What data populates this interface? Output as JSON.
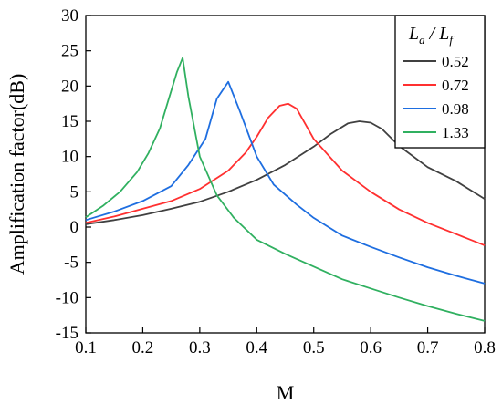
{
  "chart_data": {
    "type": "line",
    "xlabel": "M",
    "ylabel": "Amplification factor(dB)",
    "xlim": [
      0.1,
      0.8
    ],
    "ylim": [
      -15,
      30
    ],
    "xticks": [
      "0.1",
      "0.2",
      "0.3",
      "0.4",
      "0.5",
      "0.6",
      "0.7",
      "0.8"
    ],
    "yticks": [
      "-15",
      "-10",
      "-5",
      "0",
      "5",
      "10",
      "15",
      "20",
      "25",
      "30"
    ],
    "grid": false,
    "legend": {
      "placement": "top-right",
      "title_main_1": "L",
      "title_sub_1": "a",
      "title_sep": " / ",
      "title_main_2": "L",
      "title_sub_2": "f"
    },
    "series": [
      {
        "name": "0.52",
        "color": "#404040",
        "x": [
          0.1,
          0.15,
          0.2,
          0.25,
          0.3,
          0.35,
          0.4,
          0.45,
          0.5,
          0.53,
          0.56,
          0.58,
          0.6,
          0.62,
          0.65,
          0.7,
          0.75,
          0.8
        ],
        "y": [
          0.4,
          1.0,
          1.7,
          2.6,
          3.6,
          5.0,
          6.7,
          8.8,
          11.4,
          13.2,
          14.7,
          15.0,
          14.8,
          13.9,
          11.5,
          8.5,
          6.5,
          4.0
        ]
      },
      {
        "name": "0.72",
        "color": "#ff3030",
        "x": [
          0.1,
          0.15,
          0.2,
          0.25,
          0.3,
          0.35,
          0.38,
          0.4,
          0.42,
          0.44,
          0.455,
          0.47,
          0.5,
          0.55,
          0.6,
          0.65,
          0.7,
          0.75,
          0.8
        ],
        "y": [
          0.6,
          1.5,
          2.6,
          3.7,
          5.4,
          8.0,
          10.5,
          12.8,
          15.5,
          17.2,
          17.5,
          16.8,
          12.5,
          8.0,
          5.0,
          2.5,
          0.6,
          -1.0,
          -2.6
        ]
      },
      {
        "name": "0.98",
        "color": "#1e6ee0",
        "x": [
          0.1,
          0.15,
          0.2,
          0.25,
          0.28,
          0.31,
          0.33,
          0.35,
          0.37,
          0.4,
          0.43,
          0.47,
          0.5,
          0.55,
          0.6,
          0.65,
          0.7,
          0.75,
          0.8
        ],
        "y": [
          1.0,
          2.2,
          3.7,
          5.8,
          8.8,
          12.5,
          18.2,
          20.6,
          16.5,
          10.0,
          6.0,
          3.2,
          1.3,
          -1.2,
          -2.8,
          -4.3,
          -5.7,
          -6.9,
          -8.0
        ]
      },
      {
        "name": "1.33",
        "color": "#30b060",
        "x": [
          0.1,
          0.13,
          0.16,
          0.19,
          0.21,
          0.23,
          0.245,
          0.26,
          0.27,
          0.28,
          0.3,
          0.33,
          0.36,
          0.4,
          0.45,
          0.5,
          0.55,
          0.6,
          0.65,
          0.7,
          0.75,
          0.8
        ],
        "y": [
          1.4,
          3.0,
          5.0,
          7.8,
          10.5,
          14.0,
          18.0,
          22.0,
          24.0,
          18.5,
          10.0,
          4.5,
          1.3,
          -1.8,
          -3.8,
          -5.6,
          -7.4,
          -8.7,
          -10.0,
          -11.2,
          -12.3,
          -13.3
        ]
      }
    ]
  }
}
